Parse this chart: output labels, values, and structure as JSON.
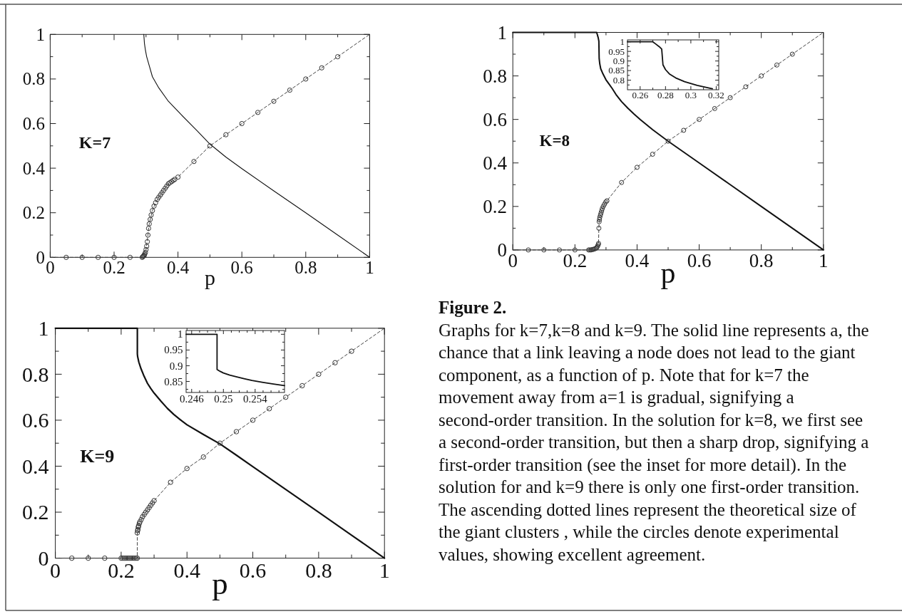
{
  "chart_data": [
    {
      "type": "line",
      "xlabel": "p",
      "annotations": [
        "K=7"
      ],
      "xlim": [
        0,
        1
      ],
      "ylim": [
        0,
        1
      ],
      "xticks": [
        0,
        {
          "value": 0.1,
          "label": null
        },
        0.2,
        {
          "value": 0.3,
          "label": null
        },
        0.4,
        {
          "value": 0.5,
          "label": null
        },
        0.6,
        {
          "value": 0.7,
          "label": null
        },
        0.8,
        {
          "value": 0.9,
          "label": null
        },
        1
      ],
      "yticks": [
        0,
        {
          "value": 0.1,
          "label": null
        },
        0.2,
        {
          "value": 0.3,
          "label": null
        },
        0.4,
        {
          "value": 0.5,
          "label": null
        },
        0.6,
        {
          "value": 0.7,
          "label": null
        },
        0.8,
        {
          "value": 0.9,
          "label": null
        },
        1
      ],
      "series": [
        {
          "type": "line",
          "line_style": "solid",
          "color": "#111111",
          "x": [
            0.293,
            0.295,
            0.298,
            0.302,
            0.31,
            0.32,
            0.34,
            0.37,
            0.41,
            0.46,
            0.5,
            0.55,
            0.6,
            0.7,
            0.8,
            0.9,
            1
          ],
          "values": [
            1,
            0.96,
            0.93,
            0.9,
            0.86,
            0.81,
            0.76,
            0.7,
            0.64,
            0.568,
            0.508,
            0.45,
            0.398,
            0.298,
            0.2,
            0.1,
            0
          ]
        },
        {
          "type": "line",
          "line_style": "dashed",
          "color": "#444444",
          "x": [
            0,
            0.288,
            0.294,
            0.3,
            0.306,
            0.31,
            0.32,
            0.33,
            0.34,
            0.35,
            0.36,
            0.37,
            0.38,
            0.39,
            0.4,
            0.45,
            0.5,
            0.55,
            0.6,
            0.7,
            0.8,
            0.9,
            1
          ],
          "values": [
            0,
            0,
            0.01,
            0.035,
            0.1,
            0.15,
            0.21,
            0.245,
            0.27,
            0.29,
            0.31,
            0.33,
            0.34,
            0.35,
            0.36,
            0.43,
            0.5,
            0.55,
            0.6,
            0.7,
            0.8,
            0.9,
            1
          ]
        },
        {
          "type": "scatter",
          "marker": "circle",
          "color": "#333333",
          "x": [
            0.05,
            0.1,
            0.15,
            0.2,
            0.25,
            0.288,
            0.29,
            0.292,
            0.294,
            0.296,
            0.298,
            0.3,
            0.302,
            0.304,
            0.306,
            0.308,
            0.31,
            0.313,
            0.316,
            0.32,
            0.325,
            0.33,
            0.335,
            0.34,
            0.345,
            0.35,
            0.355,
            0.36,
            0.365,
            0.37,
            0.375,
            0.38,
            0.385,
            0.39,
            0.4,
            0.45,
            0.5,
            0.55,
            0.6,
            0.65,
            0.7,
            0.75,
            0.8,
            0.85,
            0.9
          ],
          "values": [
            0,
            0,
            0,
            0,
            0,
            0,
            0.003,
            0.006,
            0.01,
            0.015,
            0.022,
            0.035,
            0.05,
            0.07,
            0.1,
            0.13,
            0.15,
            0.17,
            0.19,
            0.21,
            0.23,
            0.245,
            0.26,
            0.27,
            0.28,
            0.29,
            0.3,
            0.31,
            0.32,
            0.33,
            0.335,
            0.34,
            0.345,
            0.35,
            0.36,
            0.43,
            0.5,
            0.55,
            0.6,
            0.65,
            0.7,
            0.75,
            0.8,
            0.85,
            0.9
          ]
        }
      ]
    },
    {
      "type": "line",
      "xlabel": "p",
      "annotations": [
        "K=8"
      ],
      "xlim": [
        0,
        1
      ],
      "ylim": [
        0,
        1
      ],
      "xticks": [
        0,
        {
          "value": 0.1,
          "label": null
        },
        0.2,
        {
          "value": 0.3,
          "label": null
        },
        0.4,
        {
          "value": 0.5,
          "label": null
        },
        0.6,
        {
          "value": 0.7,
          "label": null
        },
        0.8,
        {
          "value": 0.9,
          "label": null
        },
        1
      ],
      "yticks": [
        0,
        {
          "value": 0.1,
          "label": null
        },
        0.2,
        {
          "value": 0.3,
          "label": null
        },
        0.4,
        {
          "value": 0.5,
          "label": null
        },
        0.6,
        {
          "value": 0.7,
          "label": null
        },
        0.8,
        {
          "value": 0.9,
          "label": null
        },
        1
      ],
      "series": [
        {
          "type": "line",
          "line_style": "solid",
          "color": "#111111",
          "x": [
            0,
            0.27,
            0.272,
            0.275,
            0.277,
            0.278,
            0.28,
            0.283,
            0.29,
            0.3,
            0.31,
            0.32,
            0.332,
            0.35,
            0.37,
            0.39,
            0.41,
            0.45,
            0.5,
            0.55,
            0.6,
            0.7,
            0.8,
            0.9,
            1
          ],
          "values": [
            1,
            1,
            0.99,
            0.975,
            0.96,
            0.88,
            0.855,
            0.833,
            0.81,
            0.782,
            0.762,
            0.742,
            0.715,
            0.682,
            0.652,
            0.625,
            0.6,
            0.553,
            0.5,
            0.45,
            0.4,
            0.3,
            0.2,
            0.1,
            0
          ]
        },
        {
          "type": "line",
          "line_style": "dashed",
          "color": "#444444",
          "x": [
            0,
            0.244,
            0.26,
            0.268,
            0.273,
            0.276,
            0.277,
            0.278,
            0.28,
            0.284,
            0.288,
            0.295,
            0.303,
            0.35,
            0.4,
            0.45,
            0.5,
            0.55,
            0.6,
            0.7,
            0.8,
            0.9,
            1
          ],
          "values": [
            0,
            0,
            0.003,
            0.008,
            0.018,
            0.03,
            0.1,
            0.13,
            0.15,
            0.17,
            0.19,
            0.21,
            0.226,
            0.31,
            0.38,
            0.44,
            0.5,
            0.55,
            0.6,
            0.7,
            0.8,
            0.9,
            1
          ]
        },
        {
          "type": "scatter",
          "marker": "circle",
          "color": "#333333",
          "x": [
            0.05,
            0.1,
            0.15,
            0.2,
            0.244,
            0.248,
            0.252,
            0.256,
            0.26,
            0.264,
            0.268,
            0.271,
            0.273,
            0.275,
            0.276,
            0.277,
            0.278,
            0.279,
            0.28,
            0.282,
            0.284,
            0.286,
            0.288,
            0.291,
            0.295,
            0.299,
            0.303,
            0.35,
            0.4,
            0.45,
            0.5,
            0.55,
            0.6,
            0.65,
            0.7,
            0.75,
            0.8,
            0.85,
            0.9
          ],
          "values": [
            0,
            0,
            0,
            0,
            0,
            0,
            0,
            0.002,
            0.003,
            0.005,
            0.008,
            0.012,
            0.018,
            0.024,
            0.03,
            0.1,
            0.13,
            0.14,
            0.15,
            0.16,
            0.17,
            0.18,
            0.19,
            0.2,
            0.21,
            0.22,
            0.226,
            0.31,
            0.38,
            0.44,
            0.5,
            0.55,
            0.6,
            0.65,
            0.7,
            0.75,
            0.8,
            0.85,
            0.9
          ]
        }
      ]
    },
    {
      "type": "line",
      "xlim": [
        0.25,
        0.322
      ],
      "ylim": [
        0.75,
        1.01
      ],
      "xticks": [
        0.26,
        {
          "value": 0.27,
          "label": null
        },
        0.28,
        {
          "value": 0.29,
          "label": null
        },
        0.3,
        {
          "value": 0.31,
          "label": null
        },
        0.32
      ],
      "yticks": [
        {
          "value": 0.775,
          "label": null
        },
        0.8,
        {
          "value": 0.825,
          "label": null
        },
        0.85,
        {
          "value": 0.875,
          "label": null
        },
        0.9,
        {
          "value": 0.925,
          "label": null
        },
        0.95,
        {
          "value": 0.975,
          "label": null
        },
        1
      ],
      "series": [
        {
          "type": "line",
          "line_style": "solid",
          "color": "#111111",
          "x": [
            0.25,
            0.27,
            0.272,
            0.275,
            0.277,
            0.278,
            0.28,
            0.283,
            0.288,
            0.295,
            0.305,
            0.317
          ],
          "values": [
            1,
            1,
            0.99,
            0.975,
            0.962,
            0.88,
            0.855,
            0.833,
            0.812,
            0.792,
            0.773,
            0.755
          ]
        }
      ]
    },
    {
      "type": "line",
      "xlabel": "p",
      "annotations": [
        "K=9"
      ],
      "xlim": [
        0,
        1
      ],
      "ylim": [
        0,
        1
      ],
      "xticks": [
        0,
        {
          "value": 0.1,
          "label": null
        },
        0.2,
        {
          "value": 0.3,
          "label": null
        },
        0.4,
        {
          "value": 0.5,
          "label": null
        },
        0.6,
        {
          "value": 0.7,
          "label": null
        },
        0.8,
        {
          "value": 0.9,
          "label": null
        },
        1
      ],
      "yticks": [
        0,
        {
          "value": 0.1,
          "label": null
        },
        0.2,
        {
          "value": 0.3,
          "label": null
        },
        0.4,
        {
          "value": 0.5,
          "label": null
        },
        0.6,
        {
          "value": 0.7,
          "label": null
        },
        0.8,
        {
          "value": 0.9,
          "label": null
        },
        1
      ],
      "series": [
        {
          "type": "line",
          "line_style": "solid",
          "color": "#111111",
          "x": [
            0,
            0.2492,
            0.2492,
            0.25,
            0.2536,
            0.26,
            0.27,
            0.28,
            0.29,
            0.3,
            0.32,
            0.34,
            0.36,
            0.38,
            0.4,
            0.45,
            0.5,
            0.55,
            0.6,
            0.7,
            0.8,
            0.9,
            1
          ],
          "values": [
            1,
            1,
            0.888,
            0.877,
            0.853,
            0.825,
            0.79,
            0.76,
            0.738,
            0.718,
            0.684,
            0.652,
            0.625,
            0.602,
            0.58,
            0.538,
            0.497,
            0.448,
            0.398,
            0.299,
            0.2,
            0.1,
            0
          ]
        },
        {
          "type": "line",
          "line_style": "dashed",
          "color": "#444444",
          "x": [
            0,
            0.249,
            0.249,
            0.252,
            0.255,
            0.257,
            0.261,
            0.265,
            0.27,
            0.275,
            0.28,
            0.285,
            0.29,
            0.295,
            0.3,
            0.35,
            0.4,
            0.45,
            0.5,
            0.55,
            0.6,
            0.7,
            0.8,
            0.9,
            1
          ],
          "values": [
            0,
            0,
            0.11,
            0.135,
            0.15,
            0.158,
            0.168,
            0.18,
            0.19,
            0.2,
            0.21,
            0.22,
            0.23,
            0.24,
            0.25,
            0.33,
            0.39,
            0.44,
            0.5,
            0.55,
            0.6,
            0.7,
            0.8,
            0.9,
            1
          ]
        },
        {
          "type": "scatter",
          "marker": "circle",
          "color": "#333333",
          "x": [
            0.05,
            0.1,
            0.15,
            0.2,
            0.205,
            0.21,
            0.215,
            0.22,
            0.225,
            0.23,
            0.235,
            0.24,
            0.245,
            0.249,
            0.249,
            0.25,
            0.251,
            0.252,
            0.253,
            0.255,
            0.257,
            0.261,
            0.265,
            0.27,
            0.275,
            0.28,
            0.285,
            0.29,
            0.295,
            0.3,
            0.35,
            0.4,
            0.45,
            0.5,
            0.55,
            0.6,
            0.65,
            0.7,
            0.75,
            0.8,
            0.85,
            0.9
          ],
          "values": [
            0,
            0,
            0,
            0,
            0,
            0,
            0,
            0,
            0,
            0,
            0,
            0,
            0,
            0,
            0.11,
            0.12,
            0.125,
            0.135,
            0.14,
            0.15,
            0.158,
            0.168,
            0.18,
            0.19,
            0.2,
            0.21,
            0.22,
            0.23,
            0.24,
            0.25,
            0.33,
            0.39,
            0.44,
            0.5,
            0.55,
            0.6,
            0.65,
            0.7,
            0.75,
            0.8,
            0.85,
            0.9
          ]
        }
      ]
    },
    {
      "type": "line",
      "xlim": [
        0.2453,
        0.2577
      ],
      "ylim": [
        0.815,
        1.012
      ],
      "xticks": [
        0.246,
        {
          "value": 0.247,
          "label": null
        },
        {
          "value": 0.248,
          "label": null
        },
        {
          "value": 0.249,
          "label": null
        },
        0.25,
        {
          "value": 0.251,
          "label": null
        },
        {
          "value": 0.252,
          "label": null
        },
        {
          "value": 0.253,
          "label": null
        },
        0.254,
        {
          "value": 0.255,
          "label": null
        },
        {
          "value": 0.256,
          "label": null
        },
        {
          "value": 0.257,
          "label": null
        }
      ],
      "yticks": [
        {
          "value": 0.825,
          "label": null
        },
        0.85,
        {
          "value": 0.875,
          "label": null
        },
        0.9,
        {
          "value": 0.925,
          "label": null
        },
        0.95,
        {
          "value": 0.975,
          "label": null
        },
        1
      ],
      "series": [
        {
          "type": "line",
          "line_style": "solid",
          "color": "#111111",
          "x": [
            0.2453,
            0.2492,
            0.2492,
            0.2496,
            0.25,
            0.2508,
            0.2516,
            0.2526,
            0.2536,
            0.255,
            0.2563,
            0.2577
          ],
          "values": [
            1,
            1,
            0.888,
            0.882,
            0.877,
            0.87,
            0.865,
            0.859,
            0.853,
            0.847,
            0.842,
            0.837
          ]
        }
      ]
    },
    {
      "type": "other",
      "title": "Figure 2.",
      "annotations": [
        "Graphs for k=7,k=8 and k=9. The solid line represents a, the chance that a link leaving a node does not lead to the giant component, as a function of p. Note that for k=7 the movement away from a=1 is gradual, signifying a second-order transition. In the solution for k=8, we first see a second-order transition, but then a sharp drop, signifying a first-order transition (see the inset for more detail). In the solution for and k=9 there is only one first-order transition. The ascending dotted lines represent the theoretical size of the giant clusters , while the circles denote experimental values, showing excellent agreement."
      ]
    }
  ]
}
